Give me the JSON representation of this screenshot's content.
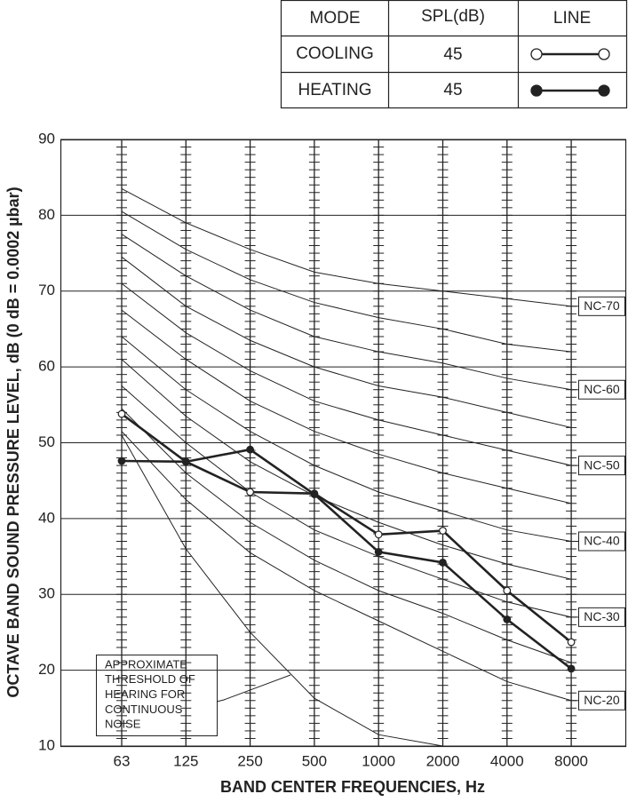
{
  "chart_data": {
    "type": "line",
    "legend_table": {
      "headers": [
        "MODE",
        "SPL(dB)",
        "LINE"
      ]
    },
    "y_label": "OCTAVE BAND SOUND PRESSURE LEVEL, dB (0 dB = 0.0002 µbar)",
    "x_label": "BAND CENTER FREQUENCIES, Hz",
    "categories": [
      "63",
      "125",
      "250",
      "500",
      "1000",
      "2000",
      "4000",
      "8000"
    ],
    "ylim": [
      10,
      90
    ],
    "yticks": [
      10,
      20,
      30,
      40,
      50,
      60,
      70,
      80,
      90
    ],
    "minor_tick_interval": 1,
    "grid": true,
    "series": [
      {
        "name": "COOLING",
        "spl": 45,
        "marker": "open",
        "color": "#222222",
        "values": [
          53.8,
          47.5,
          43.5,
          43.3,
          37.9,
          38.4,
          30.5,
          23.7
        ]
      },
      {
        "name": "HEATING",
        "spl": 45,
        "marker": "filled",
        "color": "#222222",
        "values": [
          47.6,
          47.5,
          49.1,
          43.2,
          35.6,
          34.2,
          26.7,
          20.2
        ]
      }
    ],
    "nc_curves": [
      {
        "label": "NC-70",
        "values": [
          83.5,
          79,
          75.5,
          72.5,
          71,
          70,
          69,
          68
        ]
      },
      {
        "values": [
          80.5,
          75.5,
          71.5,
          68.5,
          66.5,
          65,
          63,
          62
        ]
      },
      {
        "label": "NC-60",
        "values": [
          77.5,
          72,
          67.5,
          64,
          62,
          60.5,
          58.5,
          57
        ]
      },
      {
        "values": [
          74.5,
          68,
          63.5,
          60,
          57.5,
          56,
          54,
          52
        ]
      },
      {
        "label": "NC-50",
        "values": [
          71,
          64.5,
          59.5,
          55.5,
          53,
          51,
          49,
          47
        ]
      },
      {
        "values": [
          67.5,
          61,
          55.5,
          51.5,
          48.5,
          46,
          44,
          42
        ]
      },
      {
        "label": "NC-40",
        "values": [
          64,
          57,
          51.5,
          47,
          43.5,
          41,
          38.5,
          37
        ]
      },
      {
        "values": [
          61,
          53.5,
          47.5,
          43,
          39.5,
          36.5,
          34,
          32
        ]
      },
      {
        "label": "NC-30",
        "values": [
          57.5,
          50,
          43.5,
          38.5,
          35,
          32,
          29,
          27
        ]
      },
      {
        "values": [
          54.5,
          46,
          39.5,
          34.5,
          30.5,
          27.5,
          24,
          21
        ]
      },
      {
        "label": "NC-20",
        "values": [
          51.5,
          42.5,
          35.5,
          30.5,
          26.5,
          22.5,
          18.5,
          16
        ]
      },
      {
        "values": [
          51,
          36,
          25,
          16.3,
          11.5,
          10,
          null,
          null
        ]
      }
    ],
    "annotation": [
      "APPROXIMATE",
      "THRESHOLD OF",
      "HEARING FOR",
      "CONTINUOUS",
      "NOISE"
    ]
  }
}
